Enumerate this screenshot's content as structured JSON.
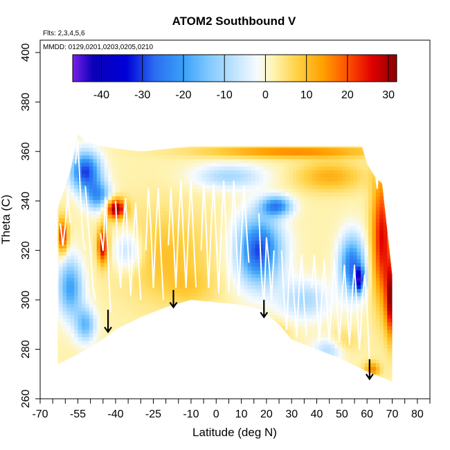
{
  "chart_data": {
    "type": "heatmap",
    "title": "ATOM2 Southbound V",
    "flights_note": "Flts: 2,3,4,5,6",
    "dates_note": "MMDD: 0129,0201,0203,0205,0210",
    "xlabel": "Latitude (deg N)",
    "ylabel": "Theta (C)",
    "xlim": [
      -70,
      85
    ],
    "ylim": [
      260,
      405
    ],
    "x_ticks": [
      -70,
      -65,
      -60,
      -55,
      -50,
      -45,
      -40,
      -35,
      -30,
      -25,
      -20,
      -15,
      -10,
      -5,
      0,
      5,
      10,
      15,
      20,
      25,
      30,
      35,
      40,
      45,
      50,
      55,
      60,
      65,
      70,
      75,
      80,
      85
    ],
    "x_tick_labels": [
      "-70",
      "-55",
      "-40",
      "-25",
      "-10",
      "0",
      "10",
      "20",
      "30",
      "40",
      "50",
      "60",
      "70",
      "80"
    ],
    "x_labeled_values": [
      -70,
      -55,
      -40,
      -25,
      -10,
      0,
      10,
      20,
      30,
      40,
      50,
      60,
      70,
      80
    ],
    "y_ticks": [
      260,
      280,
      300,
      320,
      340,
      360,
      380,
      400
    ],
    "y_tick_labels": [
      "260",
      "280",
      "300",
      "320",
      "340",
      "360",
      "380",
      "400"
    ],
    "colorbar": {
      "range": [
        -47,
        32
      ],
      "ticks": [
        -40,
        -30,
        -20,
        -10,
        0,
        10,
        20,
        30
      ],
      "tick_labels": [
        "-40",
        "-30",
        "-20",
        "-10",
        "0",
        "10",
        "20",
        "30"
      ]
    },
    "colormap": [
      {
        "v": -47,
        "c": "#7a1fe8"
      },
      {
        "v": -42,
        "c": "#0a00b8"
      },
      {
        "v": -34,
        "c": "#0000d8"
      },
      {
        "v": -27,
        "c": "#2a6ef0"
      },
      {
        "v": -20,
        "c": "#3aa0f8"
      },
      {
        "v": -14,
        "c": "#7ec8ff"
      },
      {
        "v": -7,
        "c": "#c6e6ff"
      },
      {
        "v": -2,
        "c": "#f6fbff"
      },
      {
        "v": 2,
        "c": "#fff3b0"
      },
      {
        "v": 8,
        "c": "#ffd040"
      },
      {
        "v": 14,
        "c": "#ffa000"
      },
      {
        "v": 20,
        "c": "#ff5000"
      },
      {
        "v": 26,
        "c": "#e00000"
      },
      {
        "v": 32,
        "c": "#8a0000"
      }
    ],
    "domain_top": [
      [
        -63,
        337
      ],
      [
        -58,
        352
      ],
      [
        -55,
        367
      ],
      [
        -52,
        364
      ],
      [
        -45,
        362
      ],
      [
        -38,
        361
      ],
      [
        -30,
        360
      ],
      [
        -20,
        361
      ],
      [
        -10,
        362
      ],
      [
        0,
        362
      ],
      [
        10,
        362
      ],
      [
        20,
        362
      ],
      [
        30,
        362
      ],
      [
        40,
        362
      ],
      [
        50,
        362
      ],
      [
        58,
        362
      ],
      [
        60,
        355
      ],
      [
        63,
        350
      ],
      [
        66,
        347
      ],
      [
        70,
        310
      ]
    ],
    "domain_bottom": [
      [
        -63,
        274
      ],
      [
        -55,
        278
      ],
      [
        -45,
        284
      ],
      [
        -40,
        288
      ],
      [
        -30,
        293
      ],
      [
        -20,
        297
      ],
      [
        -10,
        300
      ],
      [
        0,
        299
      ],
      [
        10,
        298
      ],
      [
        18,
        296
      ],
      [
        25,
        290
      ],
      [
        30,
        284
      ],
      [
        40,
        280
      ],
      [
        50,
        276
      ],
      [
        60,
        271
      ],
      [
        70,
        267
      ]
    ],
    "anomalies": [
      {
        "x": 17,
        "y": 320,
        "sx": 9,
        "sy": 14,
        "v": -32
      },
      {
        "x": 24,
        "y": 338,
        "sx": 6,
        "sy": 4,
        "v": -25
      },
      {
        "x": -52,
        "y": 352,
        "sx": 6,
        "sy": 8,
        "v": -32
      },
      {
        "x": -47,
        "y": 342,
        "sx": 5,
        "sy": 6,
        "v": -22
      },
      {
        "x": 54,
        "y": 314,
        "sx": 5,
        "sy": 12,
        "v": -28
      },
      {
        "x": 57,
        "y": 308,
        "sx": 2,
        "sy": 5,
        "v": -30
      },
      {
        "x": -58,
        "y": 305,
        "sx": 5,
        "sy": 12,
        "v": -22
      },
      {
        "x": -52,
        "y": 290,
        "sx": 4,
        "sy": 7,
        "v": -18
      },
      {
        "x": -35,
        "y": 320,
        "sx": 6,
        "sy": 8,
        "v": -12
      },
      {
        "x": 35,
        "y": 300,
        "sx": 10,
        "sy": 8,
        "v": -12
      },
      {
        "x": 45,
        "y": 280,
        "sx": 6,
        "sy": 5,
        "v": -12
      },
      {
        "x": 5,
        "y": 350,
        "sx": 14,
        "sy": 5,
        "v": -12
      },
      {
        "x": -40,
        "y": 337,
        "sx": 4,
        "sy": 4,
        "v": 30
      },
      {
        "x": -45,
        "y": 322,
        "sx": 2,
        "sy": 7,
        "v": 27
      },
      {
        "x": -61,
        "y": 326,
        "sx": 2,
        "sy": 7,
        "v": 22
      },
      {
        "x": 66,
        "y": 325,
        "sx": 4,
        "sy": 25,
        "v": 24
      },
      {
        "x": 70,
        "y": 300,
        "sx": 2.5,
        "sy": 15,
        "v": 30
      },
      {
        "x": 30,
        "y": 360,
        "sx": 35,
        "sy": 2.5,
        "v": 14
      },
      {
        "x": 45,
        "y": 350,
        "sx": 13,
        "sy": 6,
        "v": 10
      },
      {
        "x": -20,
        "y": 318,
        "sx": 18,
        "sy": 18,
        "v": 8
      },
      {
        "x": -10,
        "y": 305,
        "sx": 10,
        "sy": 7,
        "v": 4
      },
      {
        "x": 22,
        "y": 286,
        "sx": 6,
        "sy": 5,
        "v": 8
      },
      {
        "x": 50,
        "y": 283,
        "sx": 6,
        "sy": 5,
        "v": 6
      },
      {
        "x": 62,
        "y": 272,
        "sx": 3,
        "sy": 3,
        "v": 14
      }
    ],
    "flight_tracks_white": [
      [
        [
          -62,
          331
        ],
        [
          -61,
          322
        ],
        [
          -60,
          330
        ],
        [
          -59,
          343
        ],
        [
          -58,
          331
        ]
      ],
      [
        [
          -56,
          355
        ],
        [
          -55,
          365
        ],
        [
          -54,
          343
        ],
        [
          -53,
          325
        ],
        [
          -52,
          320
        ]
      ],
      [
        [
          -52,
          346
        ],
        [
          -51,
          332
        ],
        [
          -50,
          320
        ],
        [
          -49,
          305
        ],
        [
          -48,
          300
        ]
      ],
      [
        [
          -46,
          327
        ],
        [
          -45,
          320
        ],
        [
          -44,
          341
        ],
        [
          -43,
          316
        ],
        [
          -42,
          295
        ]
      ],
      [
        [
          -40,
          340
        ],
        [
          -39,
          318
        ],
        [
          -38,
          305
        ],
        [
          -37,
          330
        ],
        [
          -36,
          341
        ],
        [
          -35,
          320
        ],
        [
          -34,
          302
        ],
        [
          -33,
          325
        ],
        [
          -32,
          339
        ],
        [
          -31,
          318
        ],
        [
          -30,
          300
        ]
      ],
      [
        [
          -28,
          320
        ],
        [
          -27,
          345
        ],
        [
          -26,
          330
        ],
        [
          -25,
          305
        ],
        [
          -24,
          328
        ],
        [
          -23,
          345
        ],
        [
          -22,
          320
        ],
        [
          -21,
          300
        ]
      ],
      [
        [
          -19,
          322
        ],
        [
          -18,
          345
        ],
        [
          -17,
          325
        ],
        [
          -16,
          305
        ],
        [
          -15,
          330
        ],
        [
          -14,
          348
        ],
        [
          -13,
          325
        ],
        [
          -12,
          305
        ],
        [
          -11,
          330
        ],
        [
          -10,
          348
        ],
        [
          -9,
          325
        ],
        [
          -8,
          305
        ]
      ],
      [
        [
          -6,
          320
        ],
        [
          -5,
          347
        ],
        [
          -4,
          330
        ],
        [
          -3,
          305
        ],
        [
          -2,
          330
        ],
        [
          -1,
          347
        ],
        [
          0,
          325
        ],
        [
          1,
          303
        ],
        [
          2,
          328
        ],
        [
          3,
          348
        ],
        [
          4,
          325
        ],
        [
          5,
          303
        ],
        [
          6,
          328
        ],
        [
          7,
          348
        ],
        [
          8,
          325
        ],
        [
          9,
          302
        ],
        [
          10,
          325
        ],
        [
          11,
          346
        ],
        [
          12,
          330
        ],
        [
          13,
          315
        ]
      ],
      [
        [
          17,
          335
        ],
        [
          18,
          310
        ],
        [
          19,
          298
        ],
        [
          20,
          325
        ],
        [
          21,
          315
        ],
        [
          22,
          300
        ],
        [
          23,
          320
        ]
      ],
      [
        [
          26,
          320
        ],
        [
          27,
          300
        ],
        [
          28,
          288
        ],
        [
          29,
          310
        ],
        [
          30,
          320
        ],
        [
          31,
          300
        ],
        [
          32,
          285
        ],
        [
          33,
          305
        ],
        [
          34,
          318
        ],
        [
          35,
          298
        ],
        [
          36,
          285
        ]
      ],
      [
        [
          38,
          305
        ],
        [
          39,
          318
        ],
        [
          40,
          300
        ],
        [
          41,
          283
        ],
        [
          42,
          300
        ],
        [
          43,
          316
        ],
        [
          44,
          298
        ],
        [
          45,
          283
        ],
        [
          46,
          300
        ],
        [
          47,
          316
        ],
        [
          48,
          298
        ],
        [
          49,
          283
        ],
        [
          50,
          300
        ],
        [
          51,
          314
        ],
        [
          52,
          298
        ],
        [
          53,
          282
        ],
        [
          54,
          300
        ],
        [
          55,
          314
        ],
        [
          56,
          296
        ],
        [
          57,
          280
        ],
        [
          58,
          298
        ],
        [
          59,
          310
        ],
        [
          60,
          296
        ],
        [
          61,
          275
        ]
      ],
      [
        [
          62,
          362
        ],
        [
          63,
          356
        ],
        [
          64,
          345
        ],
        [
          65,
          360
        ],
        [
          66,
          356
        ],
        [
          67,
          345
        ],
        [
          68,
          358
        ],
        [
          69,
          350
        ],
        [
          70,
          330
        ]
      ]
    ],
    "arrows": [
      {
        "x": -43,
        "y_top": 296,
        "y_bottom": 287
      },
      {
        "x": -17,
        "y_top": 304,
        "y_bottom": 297
      },
      {
        "x": 19,
        "y_top": 300,
        "y_bottom": 293
      },
      {
        "x": 61,
        "y_top": 276,
        "y_bottom": 268
      }
    ]
  }
}
